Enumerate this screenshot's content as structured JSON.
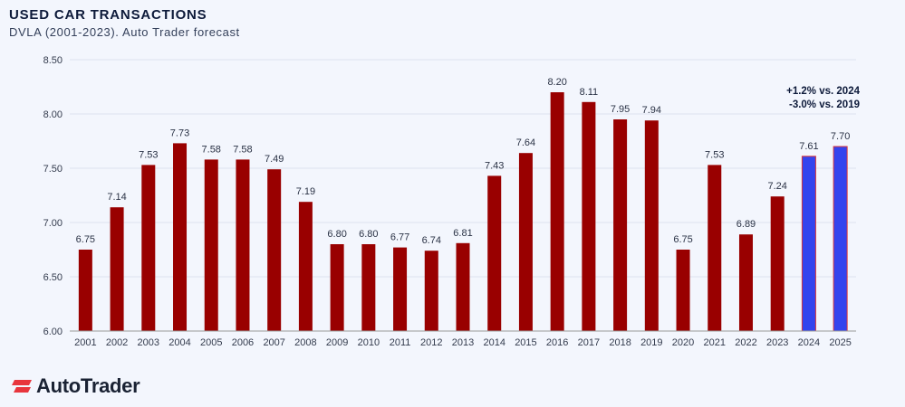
{
  "header": {
    "title": "USED CAR TRANSACTIONS",
    "subtitle": "DVLA (2001-2023). Auto Trader forecast"
  },
  "brand": {
    "name": "AutoTrader"
  },
  "chart_data": {
    "type": "bar",
    "categories": [
      "2001",
      "2002",
      "2003",
      "2004",
      "2005",
      "2006",
      "2007",
      "2008",
      "2009",
      "2010",
      "2011",
      "2012",
      "2013",
      "2014",
      "2015",
      "2016",
      "2017",
      "2018",
      "2019",
      "2020",
      "2021",
      "2022",
      "2023",
      "2024",
      "2025"
    ],
    "values": [
      6.75,
      7.14,
      7.53,
      7.73,
      7.58,
      7.58,
      7.49,
      7.19,
      6.8,
      6.8,
      6.77,
      6.74,
      6.81,
      7.43,
      7.64,
      8.2,
      8.11,
      7.95,
      7.94,
      6.75,
      7.53,
      6.89,
      7.24,
      7.61,
      7.7
    ],
    "data_labels": [
      "6.75",
      "7.14",
      "7.53",
      "7.73",
      "7.58",
      "7.58",
      "7.49",
      "7.19",
      "6.80",
      "6.80",
      "6.77",
      "6.74",
      "6.81",
      "7.43",
      "7.64",
      "8.20",
      "8.11",
      "7.95",
      "7.94",
      "6.75",
      "7.53",
      "6.89",
      "7.24",
      "7.61",
      "7.70"
    ],
    "forecast_categories": [
      "2024",
      "2025"
    ],
    "ylim": [
      6.0,
      8.5
    ],
    "yticks": [
      "6.00",
      "6.50",
      "7.00",
      "7.50",
      "8.00",
      "8.50"
    ],
    "grid": true,
    "colors": {
      "actual": "#990000",
      "forecast": "#3344ee",
      "forecast_border": "#d8343a"
    },
    "annotations": [
      "+1.2% vs. 2024",
      "-3.0% vs. 2019"
    ]
  }
}
